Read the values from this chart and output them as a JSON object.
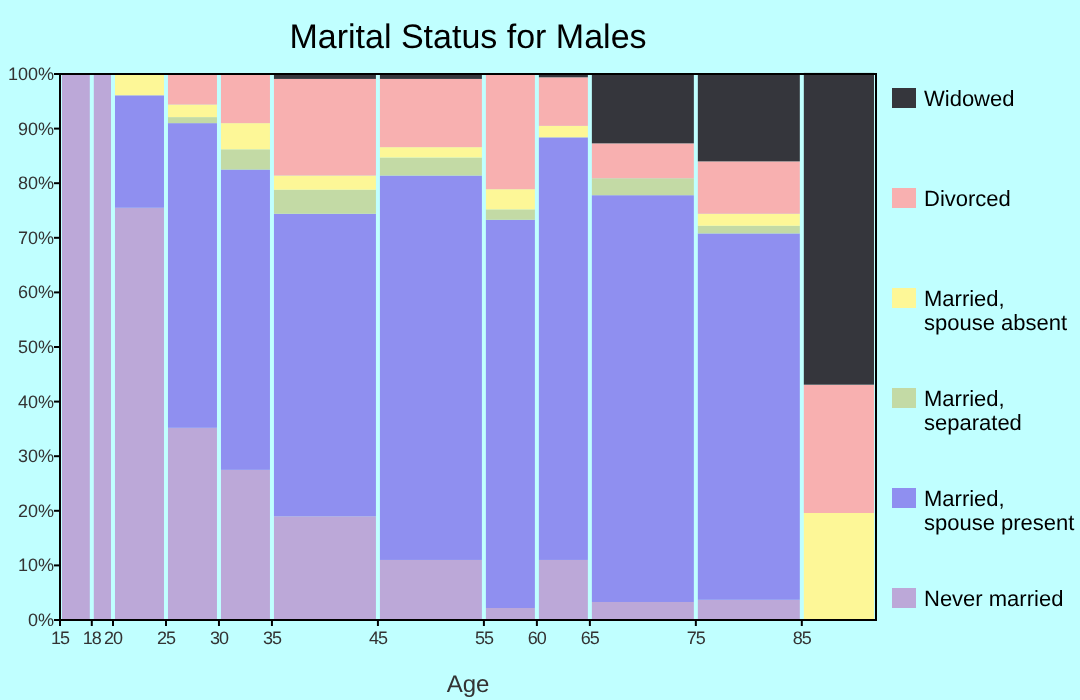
{
  "chart_data": {
    "type": "bar",
    "stacked": true,
    "title": "Marital Status for Males",
    "xlabel": "Age",
    "x": [
      16.5,
      19,
      22.5,
      27.5,
      32.5,
      40,
      50,
      57.5,
      62.5,
      70,
      80,
      88.5
    ],
    "xlim": [
      15,
      92
    ],
    "xticks": [
      15,
      18,
      20,
      25,
      30,
      35,
      45,
      55,
      60,
      65,
      75,
      85
    ],
    "ylim": [
      0,
      100
    ],
    "yticks": [
      {
        "value": 0,
        "label": "0%"
      },
      {
        "value": 10,
        "label": "10%"
      },
      {
        "value": 20,
        "label": "20%"
      },
      {
        "value": 30,
        "label": "30%"
      },
      {
        "value": 40,
        "label": "40%"
      },
      {
        "value": 50,
        "label": "50%"
      },
      {
        "value": 60,
        "label": "60%"
      },
      {
        "value": 70,
        "label": "70%"
      },
      {
        "value": 80,
        "label": "80%"
      },
      {
        "value": 90,
        "label": "90%"
      },
      {
        "value": 100,
        "label": "100%"
      }
    ],
    "legend": "right",
    "grid": false,
    "series": [
      {
        "name": "Never married",
        "color": "#bca8d8",
        "values": [
          100,
          100,
          75.5,
          35.2,
          27.5,
          19,
          11,
          2.2,
          11,
          3.3,
          3.7,
          0
        ]
      },
      {
        "name": "Married, spouse present",
        "color": "#8f8ff0",
        "values": [
          0,
          0,
          20.6,
          55.8,
          55,
          55.4,
          70.4,
          71.1,
          77.4,
          74.5,
          67.1,
          0
        ]
      },
      {
        "name": "Married, separated",
        "color": "#c3daa5",
        "values": [
          0,
          0,
          0,
          1.1,
          3.7,
          4.4,
          3.3,
          1.9,
          0,
          3.1,
          1.4,
          0
        ]
      },
      {
        "name": "Married, spouse absent",
        "color": "#fdf797",
        "values": [
          0,
          0,
          3.9,
          2.3,
          4.8,
          2.6,
          1.9,
          3.7,
          2.1,
          0,
          2.2,
          19.6
        ]
      },
      {
        "name": "Divorced",
        "color": "#f8b0b0",
        "values": [
          0,
          0,
          0,
          5.6,
          9,
          17.7,
          12.5,
          21.1,
          8.9,
          6.4,
          9.6,
          23.5
        ]
      },
      {
        "name": "Widowed",
        "color": "#35363c",
        "values": [
          0,
          0,
          0,
          0,
          0,
          0.8,
          0.9,
          0,
          0.6,
          12.7,
          15.9,
          57.1
        ]
      }
    ]
  }
}
